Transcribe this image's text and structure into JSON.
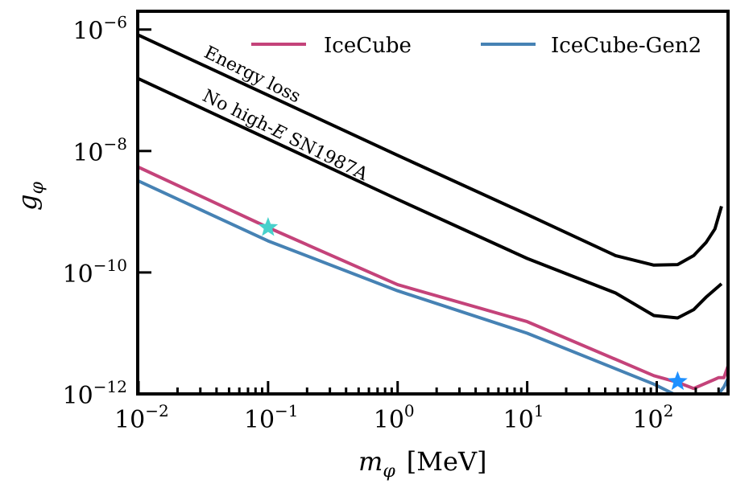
{
  "chart_data": {
    "type": "line",
    "xlabel": {
      "symbol": "m",
      "sub": "φ",
      "unit": "[MeV]"
    },
    "ylabel": {
      "symbol": "g",
      "sub": "φ"
    },
    "x_scale": "log",
    "y_scale": "log",
    "xlim": [
      0.01,
      355
    ],
    "ylim": [
      1e-12,
      2e-06
    ],
    "x_ticks": [
      {
        "base": "10",
        "exp": "−2",
        "value": 0.01
      },
      {
        "base": "10",
        "exp": "−1",
        "value": 0.1
      },
      {
        "base": "10",
        "exp": "0",
        "value": 1
      },
      {
        "base": "10",
        "exp": "1",
        "value": 10
      },
      {
        "base": "10",
        "exp": "2",
        "value": 100
      }
    ],
    "y_ticks": [
      {
        "base": "10",
        "exp": "−6",
        "value": 1e-06
      },
      {
        "base": "10",
        "exp": "−8",
        "value": 1e-08
      },
      {
        "base": "10",
        "exp": "−10",
        "value": 1e-10
      },
      {
        "base": "10",
        "exp": "−12",
        "value": 1e-12
      }
    ],
    "grid": false,
    "legend_placement": "top-right",
    "series": [
      {
        "name": "IceCube",
        "color": "#c4437a",
        "in_legend": true,
        "x": [
          0.01,
          0.1,
          1,
          10,
          95,
          145,
          193,
          300,
          330,
          355
        ],
        "y": [
          5.4e-09,
          5.5e-10,
          6.3e-11,
          1.55e-11,
          2e-12,
          1.55e-12,
          1.23e-12,
          1.85e-12,
          1.85e-12,
          2.9e-12
        ]
      },
      {
        "name": "IceCube-Gen2",
        "color": "#4682b4",
        "in_legend": true,
        "x": [
          0.01,
          0.1,
          1,
          10,
          95,
          135,
          300,
          330,
          355
        ],
        "y": [
          3.2e-09,
          3.3e-10,
          5e-11,
          1e-11,
          1.45e-12,
          1e-12,
          1e-12,
          1.3e-12,
          1.8e-12
        ]
      },
      {
        "name": "",
        "color": "#000000",
        "in_legend": false,
        "x": [
          0.01,
          1,
          10,
          48,
          95,
          145,
          193,
          240,
          281,
          316
        ],
        "y": [
          8.1e-07,
          8.5e-09,
          9e-10,
          1.9e-10,
          1.32e-10,
          1.35e-10,
          1.9e-10,
          3.1e-10,
          5.2e-10,
          1.23e-09
        ]
      },
      {
        "name": "",
        "color": "#000000",
        "in_legend": false,
        "x": [
          0.01,
          1,
          10,
          48,
          95,
          145,
          193,
          240,
          316
        ],
        "y": [
          1.55e-07,
          1.6e-09,
          1.7e-10,
          4.6e-11,
          1.95e-11,
          1.78e-11,
          2.45e-11,
          3.9e-11,
          6.5e-11
        ]
      }
    ],
    "annotations": [
      {
        "text": "Energy loss",
        "series_index": 2
      },
      {
        "text_before": "No high-",
        "text_italic": "E",
        "text_after": " SN1987A",
        "series_index": 3
      }
    ],
    "markers": [
      {
        "shape": "star",
        "x": 0.1,
        "y": 5.5e-10,
        "color": "#48d1cc"
      },
      {
        "shape": "star",
        "x": 145,
        "y": 1.6e-12,
        "color": "#1e90ff"
      }
    ]
  }
}
